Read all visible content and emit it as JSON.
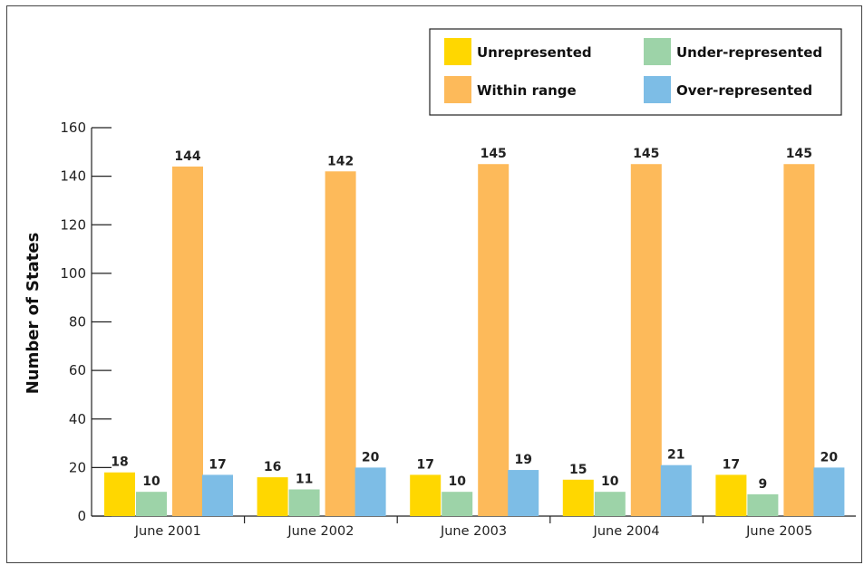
{
  "chart_data": {
    "type": "bar",
    "categories": [
      "June 2001",
      "June 2002",
      "June 2003",
      "June 2004",
      "June 2005"
    ],
    "series": [
      {
        "name": "Unrepresented",
        "color": "#ffd700",
        "values": [
          18,
          16,
          17,
          15,
          17
        ]
      },
      {
        "name": "Under-represented",
        "color": "#9dd3a8",
        "values": [
          10,
          11,
          10,
          10,
          9
        ]
      },
      {
        "name": "Within range",
        "color": "#fdba5a",
        "values": [
          144,
          142,
          145,
          145,
          145
        ]
      },
      {
        "name": "Over-represented",
        "color": "#7dbde6",
        "values": [
          17,
          20,
          19,
          21,
          20
        ]
      }
    ],
    "title": "",
    "xlabel": "",
    "ylabel": "Number of States",
    "ylim": [
      0,
      160
    ],
    "yticks": [
      0,
      20,
      40,
      60,
      80,
      100,
      120,
      140,
      160
    ],
    "grid": false,
    "legend": "top-right"
  }
}
